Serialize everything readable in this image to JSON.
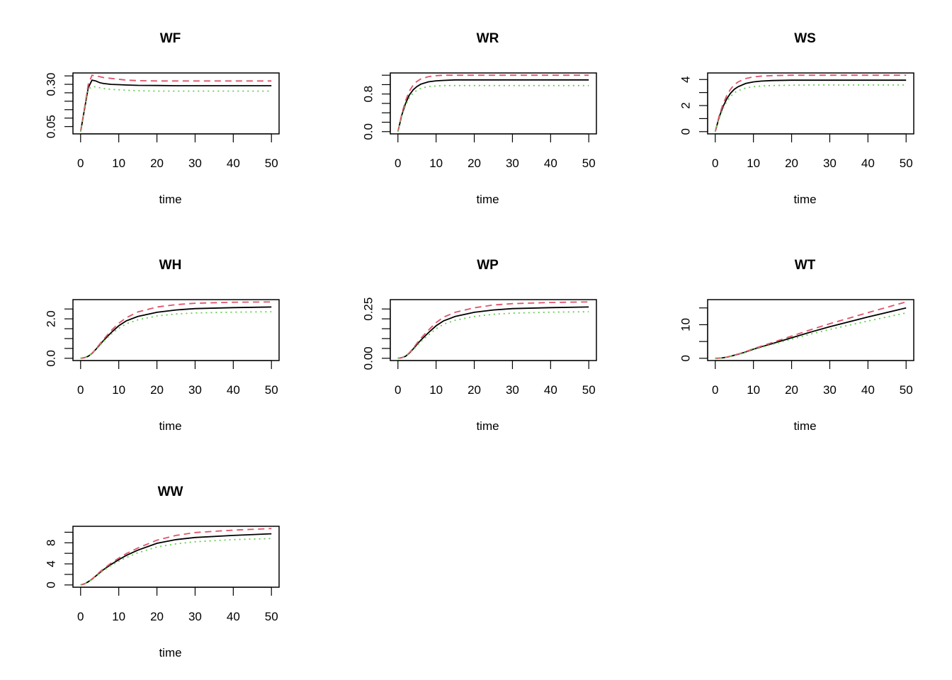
{
  "chart_data": {
    "type": "line",
    "layout": "3x3 grid of panels",
    "colors": {
      "series1": "#000000",
      "series2": "#DF536B",
      "series3": "#61D04F"
    },
    "line_styles": [
      "solid",
      "dashed",
      "dotted"
    ],
    "x": [
      0,
      1,
      2,
      3,
      4,
      5,
      6,
      8,
      10,
      12,
      15,
      20,
      25,
      30,
      40,
      50
    ],
    "xlim": [
      0,
      50
    ],
    "xticks": [
      0,
      10,
      20,
      30,
      40,
      50
    ],
    "xlabel": "time",
    "panels": [
      {
        "title": "WF",
        "yticks": [
          0.05,
          0.1,
          0.15,
          0.2,
          0.25,
          0.3,
          0.35
        ],
        "ytick_labels": [
          "0.05",
          "",
          "",
          "",
          "",
          "0.30",
          ""
        ],
        "series": [
          [
            0.02,
            0.15,
            0.28,
            0.325,
            0.32,
            0.31,
            0.305,
            0.3,
            0.298,
            0.296,
            0.294,
            0.293,
            0.292,
            0.292,
            0.292,
            0.292
          ],
          [
            0.02,
            0.16,
            0.3,
            0.354,
            0.35,
            0.345,
            0.34,
            0.335,
            0.33,
            0.325,
            0.322,
            0.32,
            0.32,
            0.32,
            0.32,
            0.32
          ],
          [
            0.02,
            0.15,
            0.27,
            0.287,
            0.285,
            0.28,
            0.275,
            0.27,
            0.268,
            0.265,
            0.262,
            0.26,
            0.26,
            0.26,
            0.26,
            0.26
          ]
        ]
      },
      {
        "title": "WR",
        "yticks": [
          0,
          0.2,
          0.4,
          0.6,
          0.8,
          1.0,
          1.2
        ],
        "ytick_labels": [
          "0.0",
          "",
          "",
          "",
          "0.8",
          "",
          ""
        ],
        "series": [
          [
            0,
            0.35,
            0.6,
            0.78,
            0.89,
            0.96,
            1.01,
            1.06,
            1.08,
            1.09,
            1.1,
            1.1,
            1.1,
            1.1,
            1.1,
            1.1
          ],
          [
            0,
            0.38,
            0.66,
            0.86,
            0.99,
            1.07,
            1.12,
            1.17,
            1.19,
            1.2,
            1.2,
            1.2,
            1.2,
            1.2,
            1.2,
            1.2
          ],
          [
            0,
            0.33,
            0.56,
            0.72,
            0.82,
            0.88,
            0.92,
            0.96,
            0.97,
            0.98,
            0.98,
            0.98,
            0.98,
            0.98,
            0.98,
            0.98
          ]
        ]
      },
      {
        "title": "WS",
        "yticks": [
          0,
          1,
          2,
          3,
          4
        ],
        "ytick_labels": [
          "0",
          "",
          "2",
          "",
          "4"
        ],
        "series": [
          [
            0,
            1.1,
            1.9,
            2.5,
            2.95,
            3.25,
            3.45,
            3.7,
            3.82,
            3.88,
            3.92,
            3.95,
            3.95,
            3.95,
            3.95,
            3.95
          ],
          [
            0,
            1.2,
            2.1,
            2.75,
            3.25,
            3.6,
            3.82,
            4.08,
            4.2,
            4.26,
            4.3,
            4.33,
            4.33,
            4.33,
            4.33,
            4.33
          ],
          [
            0,
            1.0,
            1.75,
            2.3,
            2.7,
            2.98,
            3.15,
            3.35,
            3.45,
            3.5,
            3.54,
            3.56,
            3.58,
            3.58,
            3.58,
            3.58
          ]
        ]
      },
      {
        "title": "WH",
        "yticks": [
          0,
          0.5,
          1.0,
          1.5,
          2.0,
          2.5
        ],
        "ytick_labels": [
          "0.0",
          "",
          "",
          "",
          "2.0",
          ""
        ],
        "series": [
          [
            0,
            0.03,
            0.1,
            0.25,
            0.45,
            0.68,
            0.9,
            1.3,
            1.65,
            1.9,
            2.12,
            2.33,
            2.45,
            2.52,
            2.57,
            2.6
          ],
          [
            0,
            0.03,
            0.1,
            0.26,
            0.47,
            0.72,
            0.96,
            1.4,
            1.78,
            2.06,
            2.35,
            2.6,
            2.72,
            2.79,
            2.84,
            2.86
          ],
          [
            0,
            0.03,
            0.1,
            0.24,
            0.43,
            0.64,
            0.85,
            1.22,
            1.52,
            1.75,
            1.95,
            2.15,
            2.25,
            2.3,
            2.34,
            2.36
          ]
        ]
      },
      {
        "title": "WP",
        "yticks": [
          0,
          0.05,
          0.1,
          0.15,
          0.2,
          0.25
        ],
        "ytick_labels": [
          "0.00",
          "",
          "",
          "",
          "",
          "0.25"
        ],
        "series": [
          [
            0,
            0.003,
            0.01,
            0.026,
            0.047,
            0.07,
            0.092,
            0.13,
            0.165,
            0.19,
            0.212,
            0.233,
            0.245,
            0.252,
            0.257,
            0.26
          ],
          [
            0,
            0.003,
            0.011,
            0.028,
            0.051,
            0.077,
            0.101,
            0.143,
            0.181,
            0.209,
            0.233,
            0.256,
            0.27,
            0.277,
            0.283,
            0.286
          ],
          [
            0,
            0.003,
            0.009,
            0.024,
            0.043,
            0.064,
            0.084,
            0.118,
            0.15,
            0.173,
            0.193,
            0.212,
            0.223,
            0.229,
            0.234,
            0.236
          ]
        ]
      },
      {
        "title": "WT",
        "yticks": [
          0,
          5,
          10,
          15
        ],
        "ytick_labels": [
          "0",
          "",
          "10",
          ""
        ],
        "series": [
          [
            0,
            0.05,
            0.15,
            0.35,
            0.6,
            0.9,
            1.2,
            1.9,
            2.7,
            3.4,
            4.4,
            6.1,
            7.8,
            9.4,
            12.3,
            15.0
          ],
          [
            0,
            0.05,
            0.16,
            0.37,
            0.63,
            0.95,
            1.27,
            2.0,
            2.85,
            3.6,
            4.7,
            6.6,
            8.5,
            10.3,
            13.6,
            16.8
          ],
          [
            0,
            0.05,
            0.15,
            0.33,
            0.57,
            0.85,
            1.13,
            1.8,
            2.55,
            3.2,
            4.15,
            5.7,
            7.2,
            8.6,
            11.1,
            13.5
          ]
        ]
      },
      {
        "title": "WW",
        "yticks": [
          0,
          2,
          4,
          6,
          8,
          10
        ],
        "ytick_labels": [
          "0",
          "",
          "4",
          "",
          "8",
          ""
        ],
        "series": [
          [
            0,
            0.2,
            0.6,
            1.1,
            1.7,
            2.3,
            2.9,
            3.9,
            4.8,
            5.6,
            6.6,
            7.9,
            8.6,
            9.0,
            9.4,
            9.7
          ],
          [
            0,
            0.2,
            0.6,
            1.15,
            1.8,
            2.45,
            3.05,
            4.15,
            5.1,
            5.95,
            7.0,
            8.5,
            9.4,
            9.95,
            10.4,
            10.7
          ],
          [
            0,
            0.2,
            0.6,
            1.1,
            1.65,
            2.2,
            2.75,
            3.7,
            4.5,
            5.2,
            6.1,
            7.2,
            7.8,
            8.2,
            8.6,
            8.8
          ]
        ]
      }
    ]
  }
}
